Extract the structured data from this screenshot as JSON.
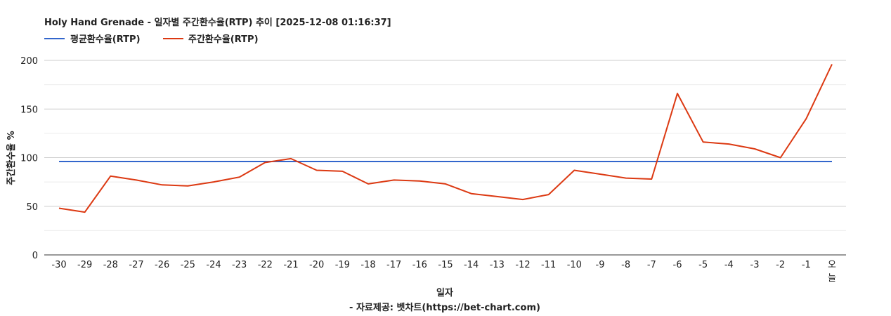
{
  "chart_data": {
    "type": "line",
    "title": "Holy Hand Grenade - 일자별 주간환수율(RTP) 추이 [2025-12-08 01:16:37]",
    "xlabel": "일자",
    "ylabel": "주간환수율 %",
    "source": "- 자료제공: 벳차트(https://bet-chart.com)",
    "categories": [
      "-30",
      "-29",
      "-28",
      "-27",
      "-26",
      "-25",
      "-24",
      "-23",
      "-22",
      "-21",
      "-20",
      "-19",
      "-18",
      "-17",
      "-16",
      "-15",
      "-14",
      "-13",
      "-12",
      "-11",
      "-10",
      "-9",
      "-8",
      "-7",
      "-6",
      "-5",
      "-4",
      "-3",
      "-2",
      "-1",
      "오늘"
    ],
    "ylim": [
      0,
      200
    ],
    "yticks": [
      "0",
      "50",
      "100",
      "150",
      "200"
    ],
    "grid": true,
    "legend_position": "top-left",
    "series": [
      {
        "name": "평균환수율(RTP)",
        "color": "#3366cc",
        "values": [
          96,
          96,
          96,
          96,
          96,
          96,
          96,
          96,
          96,
          96,
          96,
          96,
          96,
          96,
          96,
          96,
          96,
          96,
          96,
          96,
          96,
          96,
          96,
          96,
          96,
          96,
          96,
          96,
          96,
          96,
          96
        ]
      },
      {
        "name": "주간환수율(RTP)",
        "color": "#dc3912",
        "values": [
          48,
          44,
          81,
          77,
          72,
          71,
          75,
          80,
          95,
          99,
          87,
          86,
          73,
          77,
          76,
          73,
          63,
          60,
          57,
          62,
          87,
          83,
          79,
          78,
          166,
          116,
          114,
          109,
          100,
          140,
          196
        ]
      }
    ]
  }
}
